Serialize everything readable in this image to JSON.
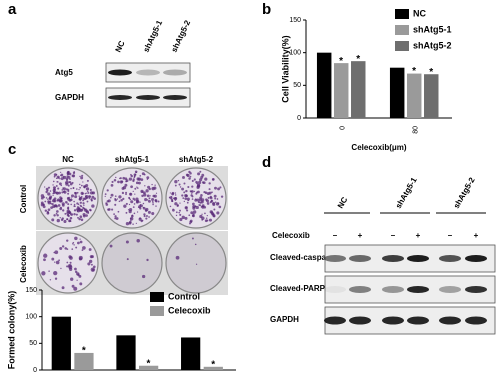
{
  "panels": {
    "a": {
      "letter": "a",
      "columns": [
        "NC",
        "shAtg5-1",
        "shAtg5-2"
      ],
      "rows": [
        "Atg5",
        "GAPDH"
      ]
    },
    "b": {
      "letter": "b"
    },
    "c": {
      "letter": "c",
      "columns": [
        "NC",
        "shAtg5-1",
        "shAtg5-2"
      ],
      "rows": [
        "Control",
        "Celecoxib"
      ]
    },
    "d": {
      "letter": "d",
      "columns": [
        "NC",
        "shAtg5-1",
        "shAtg5-2"
      ],
      "treatment": "Celecoxib",
      "treatment_signs": [
        "–",
        "+",
        "–",
        "+",
        "–",
        "+"
      ],
      "rows": [
        "Cleaved-caspase3",
        "Cleaved-PARP",
        "GAPDH"
      ]
    }
  },
  "chart_data": [
    {
      "type": "bar",
      "ylabel": "Cell Viability(%)",
      "xlabel": "Celecoxib(μm)",
      "categories": [
        "0",
        "80"
      ],
      "series": [
        {
          "name": "NC",
          "color": "#000000",
          "values": [
            100,
            77
          ]
        },
        {
          "name": "shAtg5-1",
          "color": "#9a9a9a",
          "values": [
            84,
            68
          ]
        },
        {
          "name": "shAtg5-2",
          "color": "#6e6e6e",
          "values": [
            87,
            67
          ]
        }
      ],
      "annotations": [
        {
          "text": "*",
          "series": 1,
          "category": 0
        },
        {
          "text": "*",
          "series": 2,
          "category": 0
        },
        {
          "text": "*",
          "series": 1,
          "category": 1
        },
        {
          "text": "*",
          "series": 2,
          "category": 1
        }
      ],
      "ylim": [
        0,
        150
      ],
      "yticks": [
        0,
        50,
        100,
        150
      ],
      "legend": "upper right"
    },
    {
      "type": "bar",
      "ylabel": "Formed colony(%)",
      "categories": [
        null,
        null,
        null
      ],
      "series": [
        {
          "name": "Control",
          "color": "#000000",
          "values": [
            100,
            65,
            61
          ]
        },
        {
          "name": "Celecoxib",
          "color": "#9a9a9a",
          "values": [
            32,
            8,
            6
          ]
        }
      ],
      "annotations": [
        {
          "text": "*",
          "series": 1,
          "category": 0
        },
        {
          "text": "*",
          "series": 1,
          "category": 1
        },
        {
          "text": "*",
          "series": 1,
          "category": 2
        }
      ],
      "ylim": [
        0,
        150
      ],
      "yticks": [
        0,
        50,
        100,
        150
      ],
      "legend": "upper right"
    }
  ]
}
